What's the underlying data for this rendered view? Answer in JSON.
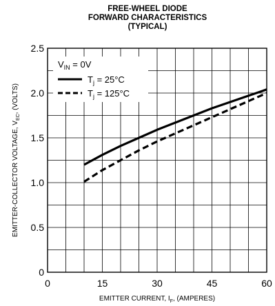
{
  "chart_data": {
    "type": "line",
    "title_lines": [
      "FREE-WHEEL DIODE",
      "FORWARD CHARACTERISTICS",
      "(TYPICAL)"
    ],
    "xlabel": {
      "main": "EMITTER CURRENT, I",
      "sub": "F",
      "rest": ", (AMPERES)"
    },
    "ylabel": {
      "main": "EMITTER-COLLECTOR VOLTAGE, V",
      "sub": "EC",
      "rest": ", (VOLTS)"
    },
    "xlim": [
      0,
      60
    ],
    "ylim": [
      0,
      2.5
    ],
    "x_ticks": [
      "0",
      "15",
      "30",
      "45",
      "60"
    ],
    "y_ticks": [
      "0",
      "0.5",
      "1.0",
      "1.5",
      "2.0",
      "2.5"
    ],
    "grid": true,
    "legend_position": "top-left",
    "legend_condition": {
      "main": "V",
      "sub": "IN",
      "rest": " = 0V"
    },
    "series": [
      {
        "name": "T_j = 25°C",
        "label_main": "T",
        "label_sub": "j",
        "label_rest": " = 25°C",
        "style": "solid",
        "x": [
          10,
          15,
          20,
          25,
          30,
          35,
          40,
          45,
          50,
          55,
          60
        ],
        "y": [
          1.2,
          1.31,
          1.41,
          1.5,
          1.59,
          1.67,
          1.75,
          1.83,
          1.9,
          1.97,
          2.04
        ]
      },
      {
        "name": "T_j = 125°C",
        "label_main": "T",
        "label_sub": "j",
        "label_rest": " = 125°C",
        "style": "dashed",
        "x": [
          10,
          15,
          20,
          25,
          30,
          35,
          40,
          45,
          50,
          55,
          60
        ],
        "y": [
          1.01,
          1.14,
          1.25,
          1.36,
          1.46,
          1.55,
          1.64,
          1.73,
          1.82,
          1.91,
          2.0
        ]
      }
    ]
  }
}
